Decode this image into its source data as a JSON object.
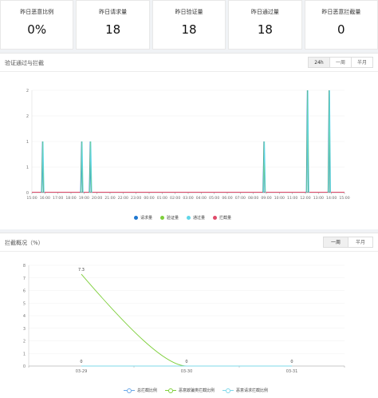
{
  "stats": [
    {
      "label": "昨日恶意比例",
      "value": "0%"
    },
    {
      "label": "昨日请求量",
      "value": "18"
    },
    {
      "label": "昨日验证量",
      "value": "18"
    },
    {
      "label": "昨日通过量",
      "value": "18"
    },
    {
      "label": "昨日恶意拦截量",
      "value": "0"
    }
  ],
  "panel1": {
    "title": "验证通过与拦截",
    "tabs": [
      "24h",
      "一周",
      "半月"
    ],
    "active_tab": "24h",
    "legend": [
      {
        "name": "请求量",
        "color": "#1f77d0"
      },
      {
        "name": "验证量",
        "color": "#7ecf3b"
      },
      {
        "name": "通过量",
        "color": "#5fd6e8"
      },
      {
        "name": "拦截量",
        "color": "#e04a6a"
      }
    ]
  },
  "panel2": {
    "title": "拦截概况（%）",
    "tabs": [
      "一周",
      "半月"
    ],
    "active_tab": "一周",
    "legend": [
      {
        "name": "总拦截比例",
        "color": "#6aa8e8"
      },
      {
        "name": "恶意欺骗类拦截比例",
        "color": "#7ecf3b"
      },
      {
        "name": "恶意请求拦截比例",
        "color": "#7fd8ea"
      }
    ]
  },
  "chart_data": [
    {
      "type": "line",
      "title": "验证通过与拦截",
      "x": [
        "15:00",
        "16:00",
        "17:00",
        "18:00",
        "19:00",
        "20:00",
        "21:00",
        "22:00",
        "23:00",
        "00:00",
        "01:00",
        "02:00",
        "03:00",
        "04:00",
        "05:00",
        "06:00",
        "07:00",
        "08:00",
        "09:00",
        "10:00",
        "11:00",
        "12:00",
        "13:00",
        "14:00",
        "15:00"
      ],
      "ylim": [
        0,
        2
      ],
      "yticks": [
        "0",
        "1",
        "1",
        "2",
        "2"
      ],
      "series": [
        {
          "name": "请求量",
          "color": "#1f77d0",
          "spikes": [
            {
              "x": "15:50",
              "v": 1
            },
            {
              "x": "18:50",
              "v": 1
            },
            {
              "x": "19:30",
              "v": 1
            },
            {
              "x": "08:50",
              "v": 1
            },
            {
              "x": "12:10",
              "v": 2
            },
            {
              "x": "13:50",
              "v": 2
            }
          ]
        },
        {
          "name": "验证量",
          "color": "#7ecf3b",
          "spikes": [
            {
              "x": "15:50",
              "v": 1
            },
            {
              "x": "18:50",
              "v": 1
            },
            {
              "x": "19:30",
              "v": 1
            },
            {
              "x": "08:50",
              "v": 1
            },
            {
              "x": "12:10",
              "v": 2
            },
            {
              "x": "13:50",
              "v": 2
            }
          ]
        },
        {
          "name": "通过量",
          "color": "#5fd6e8",
          "spikes": [
            {
              "x": "15:50",
              "v": 1
            },
            {
              "x": "18:50",
              "v": 1
            },
            {
              "x": "19:30",
              "v": 1
            },
            {
              "x": "08:50",
              "v": 1
            },
            {
              "x": "12:10",
              "v": 2
            },
            {
              "x": "13:50",
              "v": 2
            }
          ]
        },
        {
          "name": "拦截量",
          "color": "#e04a6a",
          "spikes": []
        }
      ],
      "xticks_display": [
        "15:00",
        "16:00",
        "17:00",
        "18:00",
        "19:00",
        "20:00",
        "21:00",
        "22:00",
        "23:00",
        "00:00",
        "01:00",
        "02:00",
        "03:00",
        "04:00",
        "05:00",
        "06:00",
        "07:00",
        "08:00",
        "09:00",
        "10:00",
        "11:00",
        "12:00",
        "13:00",
        "14:00",
        "15:00"
      ]
    },
    {
      "type": "line",
      "title": "拦截概况（%）",
      "categories": [
        "03-29",
        "03-30",
        "03-31"
      ],
      "ylim": [
        0,
        8
      ],
      "yticks": [
        "0",
        "1",
        "2",
        "3",
        "4",
        "5",
        "6",
        "7",
        "8"
      ],
      "series": [
        {
          "name": "总拦截比例",
          "color": "#6aa8e8",
          "values": [
            0,
            0,
            0
          ]
        },
        {
          "name": "恶意欺骗类拦截比例",
          "color": "#7ecf3b",
          "values": [
            7.3,
            0,
            0
          ]
        },
        {
          "name": "恶意请求拦截比例",
          "color": "#7fd8ea",
          "values": [
            0,
            0,
            0
          ]
        }
      ],
      "data_labels": [
        "7.3",
        "0",
        "0",
        "0"
      ]
    }
  ]
}
